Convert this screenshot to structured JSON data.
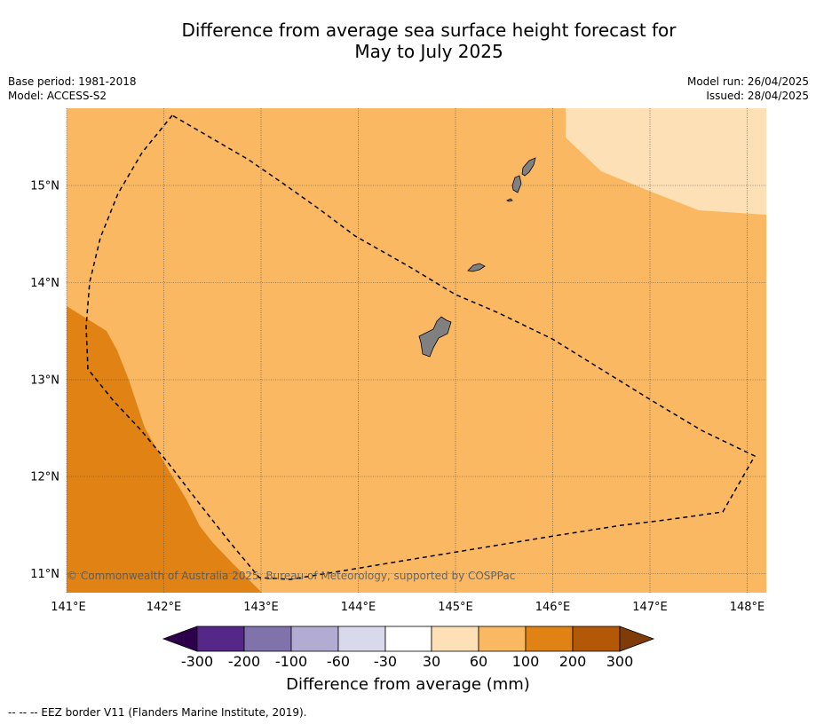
{
  "title_line1": "Difference from average sea surface height forecast for",
  "title_line2": "May to July 2025",
  "meta": {
    "base_period": "Base period: 1981-2018",
    "model": "Model: ACCESS-S2",
    "model_run": "Model run: 26/04/2025",
    "issued": "Issued: 28/04/2025"
  },
  "copyright": "© Commonwealth of Australia 2025, Bureau of Meteorology, supported by COSPPac",
  "lon_labels": [
    "141°E",
    "142°E",
    "143°E",
    "144°E",
    "145°E",
    "146°E",
    "147°E",
    "148°E"
  ],
  "lat_labels": [
    "15°N",
    "14°N",
    "13°N",
    "12°N",
    "11°N"
  ],
  "colorbar": {
    "title": "Difference from average (mm)",
    "labels": [
      "-300",
      "-200",
      "-100",
      "-60",
      "-30",
      "30",
      "60",
      "100",
      "200",
      "300"
    ],
    "colors": {
      "below_min": "#2d004b",
      "m300_m200": "#542788",
      "m200_m100": "#8073ac",
      "m100_m60": "#b2abd2",
      "m60_m30": "#d8daeb",
      "m30_30": "#ffffff",
      "p30_60": "#fee0b6",
      "p60_100": "#fbb862",
      "p100_200": "#e08214",
      "p200_300": "#b35806",
      "above_max": "#7f3b08"
    }
  },
  "footer": "--  --  -- EEZ border V11 (Flanders Marine Institute, 2019)."
}
